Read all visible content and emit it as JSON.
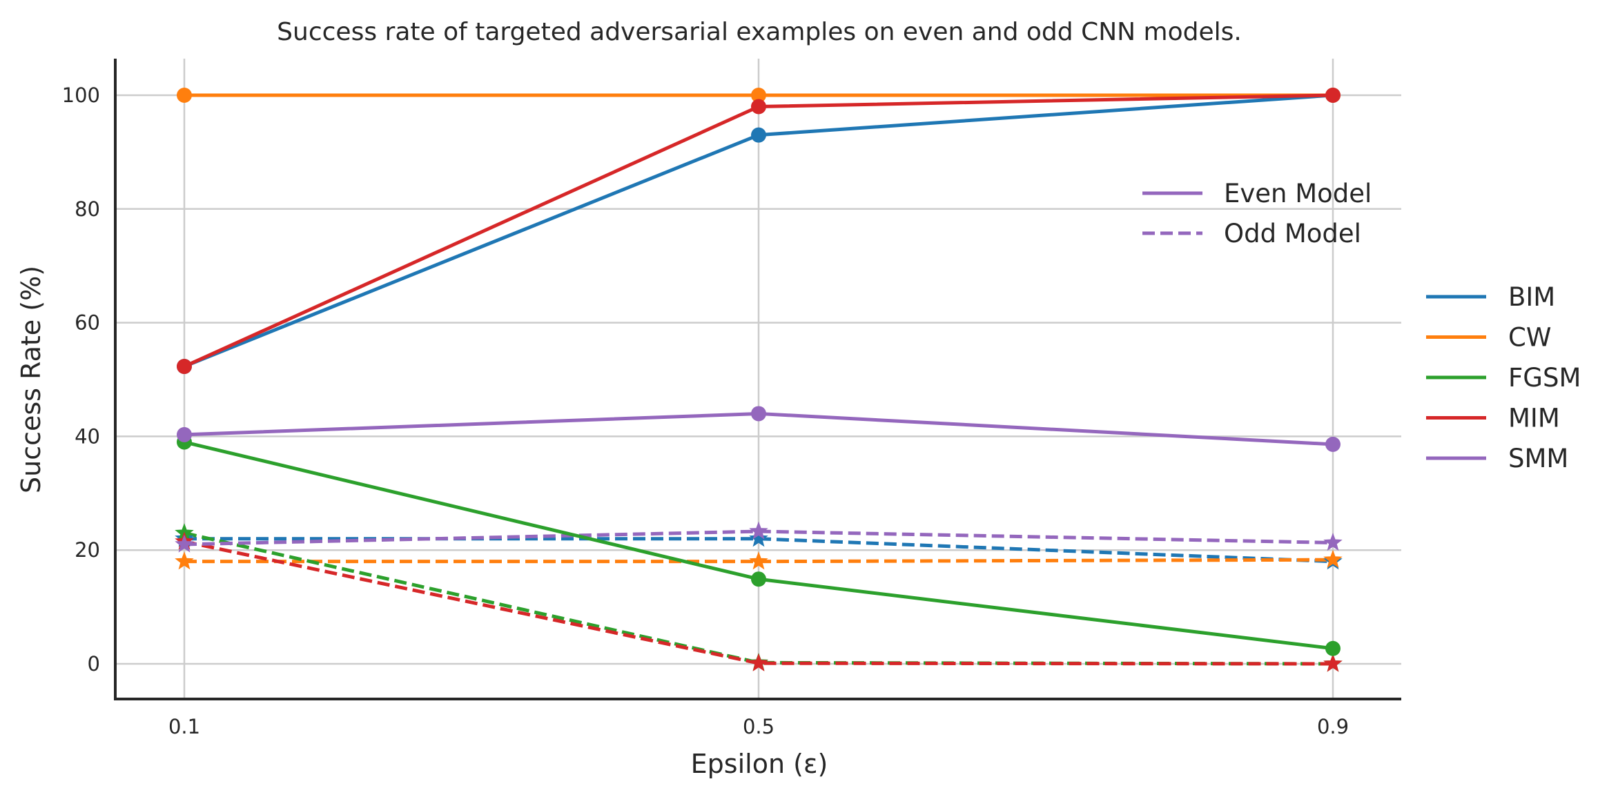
{
  "chart_data": {
    "type": "line",
    "title": "Success rate of targeted adversarial examples on even and odd CNN models.",
    "xlabel": "Epsilon (ε)",
    "ylabel": "Success Rate (%)",
    "x": [
      0.1,
      0.5,
      0.9
    ],
    "x_tick_labels": [
      "0.1",
      "0.5",
      "0.9"
    ],
    "y_ticks": [
      0,
      20,
      40,
      60,
      80,
      100
    ],
    "y_tick_labels": [
      "0",
      "20",
      "40",
      "60",
      "80",
      "100"
    ],
    "ylim": [
      -6,
      106
    ],
    "grid": true,
    "colors": {
      "BIM": "#1f77b4",
      "CW": "#ff7f0e",
      "FGSM": "#2ca02c",
      "MIM": "#d62728",
      "SMM": "#9467bd"
    },
    "series": [
      {
        "name": "BIM",
        "model": "Even Model",
        "linestyle": "solid",
        "marker": "circle",
        "values": [
          52.3,
          93.0,
          100.0
        ]
      },
      {
        "name": "CW",
        "model": "Even Model",
        "linestyle": "solid",
        "marker": "circle",
        "values": [
          100.0,
          100.0,
          100.0
        ]
      },
      {
        "name": "FGSM",
        "model": "Even Model",
        "linestyle": "solid",
        "marker": "circle",
        "values": [
          39.0,
          14.9,
          2.7
        ]
      },
      {
        "name": "MIM",
        "model": "Even Model",
        "linestyle": "solid",
        "marker": "circle",
        "values": [
          52.3,
          98.0,
          100.0
        ]
      },
      {
        "name": "SMM",
        "model": "Even Model",
        "linestyle": "solid",
        "marker": "circle",
        "values": [
          40.3,
          44.0,
          38.6
        ]
      },
      {
        "name": "BIM",
        "model": "Odd Model",
        "linestyle": "dashed",
        "marker": "star",
        "values": [
          22.0,
          22.0,
          18.0
        ]
      },
      {
        "name": "CW",
        "model": "Odd Model",
        "linestyle": "dashed",
        "marker": "star",
        "values": [
          18.0,
          18.0,
          18.3
        ]
      },
      {
        "name": "FGSM",
        "model": "Odd Model",
        "linestyle": "dashed",
        "marker": "star",
        "values": [
          23.0,
          0.2,
          0.0
        ]
      },
      {
        "name": "MIM",
        "model": "Odd Model",
        "linestyle": "dashed",
        "marker": "star",
        "values": [
          21.5,
          0.1,
          0.0
        ]
      },
      {
        "name": "SMM",
        "model": "Odd Model",
        "linestyle": "dashed",
        "marker": "star",
        "values": [
          21.0,
          23.3,
          21.3
        ]
      }
    ],
    "style_legend": {
      "placement": "upper right inside",
      "entries": [
        {
          "label": "Even Model",
          "linestyle": "solid",
          "color": "#9467bd"
        },
        {
          "label": "Odd Model",
          "linestyle": "dashed",
          "color": "#9467bd"
        }
      ]
    },
    "method_legend": {
      "placement": "right outside",
      "entries": [
        "BIM",
        "CW",
        "FGSM",
        "MIM",
        "SMM"
      ]
    }
  }
}
